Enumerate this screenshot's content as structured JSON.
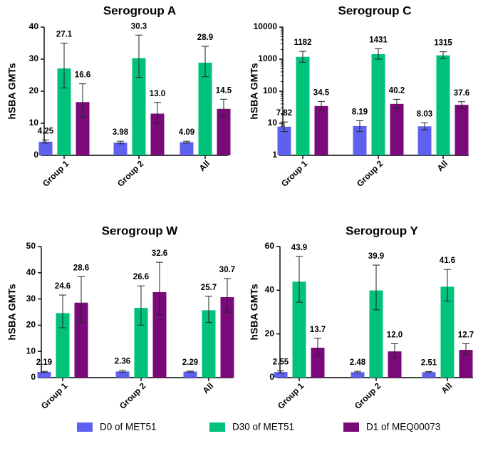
{
  "colors": {
    "D0": "#6060f0",
    "D30": "#00c27a",
    "D1": "#7a0a7a"
  },
  "legend": [
    {
      "key": "D0",
      "label": "D0 of MET51"
    },
    {
      "key": "D30",
      "label": "D30 of MET51"
    },
    {
      "key": "D1",
      "label": "D1 of MEQ00073"
    }
  ],
  "chart_data": [
    {
      "type": "bar",
      "title": "Serogroup A",
      "ylabel": "hSBA GMTs",
      "scale": "linear",
      "ylim": [
        0,
        40
      ],
      "yticks": [
        0,
        10,
        20,
        30,
        40
      ],
      "ytick_labels": [
        "0",
        "10",
        "20",
        "30",
        "40"
      ],
      "categories": [
        "Group 1",
        "Group 2",
        "All"
      ],
      "series": [
        {
          "key": "D0",
          "name": "D0 of MET51",
          "values": [
            4.25,
            3.98,
            4.09
          ],
          "labels": [
            "4.25",
            "3.98",
            "4.09"
          ],
          "lo": [
            3.8,
            3.6,
            3.8
          ],
          "hi": [
            4.8,
            4.4,
            4.4
          ]
        },
        {
          "key": "D30",
          "name": "D30 of MET51",
          "values": [
            27.1,
            30.3,
            28.9
          ],
          "labels": [
            "27.1",
            "30.3",
            "28.9"
          ],
          "lo": [
            21.0,
            24.3,
            24.5
          ],
          "hi": [
            35.0,
            37.5,
            34.0
          ]
        },
        {
          "key": "D1",
          "name": "D1 of MEQ00073",
          "values": [
            16.6,
            13.0,
            14.5
          ],
          "labels": [
            "16.6",
            "13.0",
            "14.5"
          ],
          "lo": [
            12.0,
            10.0,
            12.0
          ],
          "hi": [
            22.3,
            16.5,
            17.5
          ]
        }
      ]
    },
    {
      "type": "bar",
      "title": "Serogroup C",
      "ylabel": "hSBA GMTs",
      "scale": "log",
      "ylim": [
        1,
        10000
      ],
      "yticks": [
        1,
        10,
        100,
        1000,
        10000
      ],
      "ytick_labels": [
        "1",
        "10",
        "100",
        "1000",
        "10000"
      ],
      "categories": [
        "Group 1",
        "Group 2",
        "All"
      ],
      "series": [
        {
          "key": "D0",
          "name": "D0 of MET51",
          "values": [
            7.82,
            8.19,
            8.03
          ],
          "labels": [
            "7.82",
            "8.19",
            "8.03"
          ],
          "lo": [
            5.5,
            5.5,
            6.3
          ],
          "hi": [
            11.0,
            12.0,
            10.3
          ]
        },
        {
          "key": "D30",
          "name": "D30 of MET51",
          "values": [
            1182,
            1431,
            1315
          ],
          "labels": [
            "1182",
            "1431",
            "1315"
          ],
          "lo": [
            800,
            1000,
            1050
          ],
          "hi": [
            1750,
            2100,
            1700
          ]
        },
        {
          "key": "D1",
          "name": "D1 of MEQ00073",
          "values": [
            34.5,
            40.2,
            37.6
          ],
          "labels": [
            "34.5",
            "40.2",
            "37.6"
          ],
          "lo": [
            25,
            29,
            30
          ],
          "hi": [
            48,
            56,
            47
          ]
        }
      ]
    },
    {
      "type": "bar",
      "title": "Serogroup W",
      "ylabel": "hSBA GMTs",
      "scale": "linear",
      "ylim": [
        0,
        50
      ],
      "yticks": [
        0,
        10,
        20,
        30,
        40,
        50
      ],
      "ytick_labels": [
        "0",
        "10",
        "20",
        "30",
        "40",
        "50"
      ],
      "categories": [
        "Group 1",
        "Group 2",
        "All"
      ],
      "series": [
        {
          "key": "D0",
          "name": "D0 of MET51",
          "values": [
            2.19,
            2.36,
            2.29
          ],
          "labels": [
            "2.19",
            "2.36",
            "2.29"
          ],
          "lo": [
            2.0,
            2.0,
            2.1
          ],
          "hi": [
            2.4,
            2.8,
            2.5
          ]
        },
        {
          "key": "D30",
          "name": "D30 of MET51",
          "values": [
            24.6,
            26.6,
            25.7
          ],
          "labels": [
            "24.6",
            "26.6",
            "25.7"
          ],
          "lo": [
            19.0,
            20.0,
            21.0
          ],
          "hi": [
            31.5,
            35.0,
            31.0
          ]
        },
        {
          "key": "D1",
          "name": "D1 of MEQ00073",
          "values": [
            28.6,
            32.6,
            30.7
          ],
          "labels": [
            "28.6",
            "32.6",
            "30.7"
          ],
          "lo": [
            21.0,
            24.0,
            25.0
          ],
          "hi": [
            38.5,
            44.0,
            37.8
          ]
        }
      ]
    },
    {
      "type": "bar",
      "title": "Serogroup Y",
      "ylabel": "hSBA GMTs",
      "scale": "linear",
      "ylim": [
        0,
        60
      ],
      "yticks": [
        0,
        20,
        40,
        60
      ],
      "ytick_labels": [
        "0",
        "20",
        "40",
        "60"
      ],
      "categories": [
        "Group 1",
        "Group 2",
        "All"
      ],
      "series": [
        {
          "key": "D0",
          "name": "D0 of MET51",
          "values": [
            2.55,
            2.48,
            2.51
          ],
          "labels": [
            "2.55",
            "2.48",
            "2.51"
          ],
          "lo": [
            2.1,
            2.1,
            2.2
          ],
          "hi": [
            3.1,
            2.9,
            2.8
          ]
        },
        {
          "key": "D30",
          "name": "D30 of MET51",
          "values": [
            43.9,
            39.9,
            41.6
          ],
          "labels": [
            "43.9",
            "39.9",
            "41.6"
          ],
          "lo": [
            34.5,
            31.0,
            35.0
          ],
          "hi": [
            55.5,
            51.5,
            49.5
          ]
        },
        {
          "key": "D1",
          "name": "D1 of MEQ00073",
          "values": [
            13.7,
            12.0,
            12.7
          ],
          "labels": [
            "13.7",
            "12.0",
            "12.7"
          ],
          "lo": [
            10.0,
            9.0,
            10.5
          ],
          "hi": [
            18.0,
            15.5,
            15.5
          ]
        }
      ]
    }
  ]
}
